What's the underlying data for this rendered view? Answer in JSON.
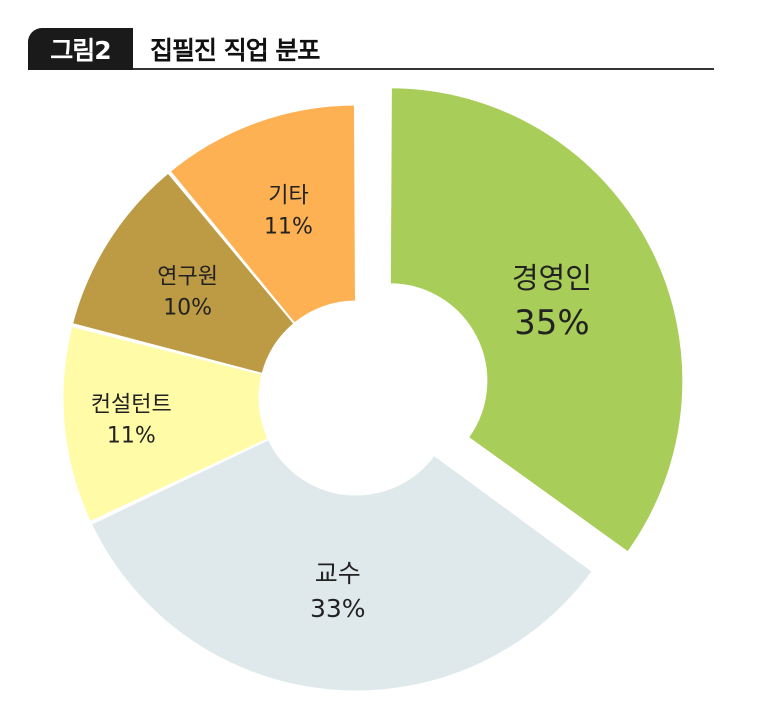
{
  "figure": {
    "badge": "그림2",
    "title": "집필진 직업 분포"
  },
  "chart_data": {
    "type": "pie",
    "variant": "donut",
    "title": "집필진 직업 분포",
    "slices": [
      {
        "label": "경영인",
        "value": 35,
        "value_text": "35%",
        "color": "#a8cd58",
        "exploded": true
      },
      {
        "label": "교수",
        "value": 33,
        "value_text": "33%",
        "color": "#dfe9ec",
        "exploded": false
      },
      {
        "label": "컨설턴트",
        "value": 11,
        "value_text": "11%",
        "color": "#fffba6",
        "exploded": false
      },
      {
        "label": "연구원",
        "value": 10,
        "value_text": "10%",
        "color": "#bd9a44",
        "exploded": false
      },
      {
        "label": "기타",
        "value": 11,
        "value_text": "11%",
        "color": "#fdb152",
        "exploded": false
      }
    ]
  }
}
